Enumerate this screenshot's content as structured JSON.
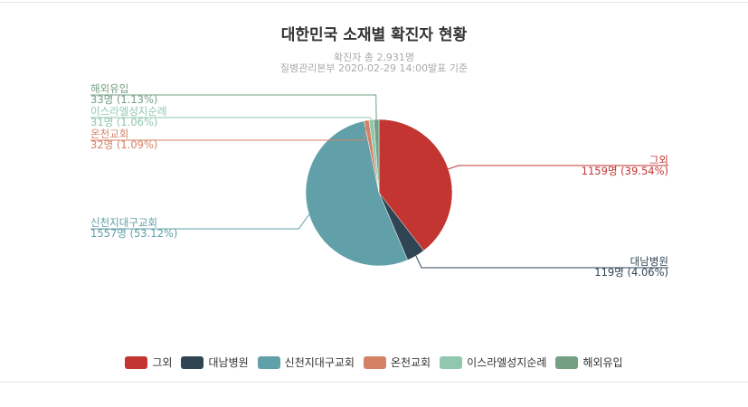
{
  "chart_data": {
    "type": "pie",
    "title": "대한민국 소재별 확진자 현황",
    "subtitle_total": "확진자 총 2,931명",
    "subtitle_source": "질병관리본부 2020-02-29 14:00발표 기준",
    "slices": [
      {
        "name": "그외",
        "value": 1159,
        "detail": "1159명 (39.54%)",
        "color": "#c23531"
      },
      {
        "name": "대남병원",
        "value": 119,
        "detail": "119명 (4.06%)",
        "color": "#2f4554"
      },
      {
        "name": "신천지대구교회",
        "value": 1557,
        "detail": "1557명 (53.12%)",
        "color": "#61a0a8"
      },
      {
        "name": "온천교회",
        "value": 32,
        "detail": "32명 (1.09%)",
        "color": "#d48265"
      },
      {
        "name": "이스라엘성지순례",
        "value": 31,
        "detail": "31명 (1.06%)",
        "color": "#91c7ae"
      },
      {
        "name": "해외유입",
        "value": 33,
        "detail": "33명 (1.13%)",
        "color": "#749f83"
      }
    ],
    "legend_position": "bottom"
  }
}
